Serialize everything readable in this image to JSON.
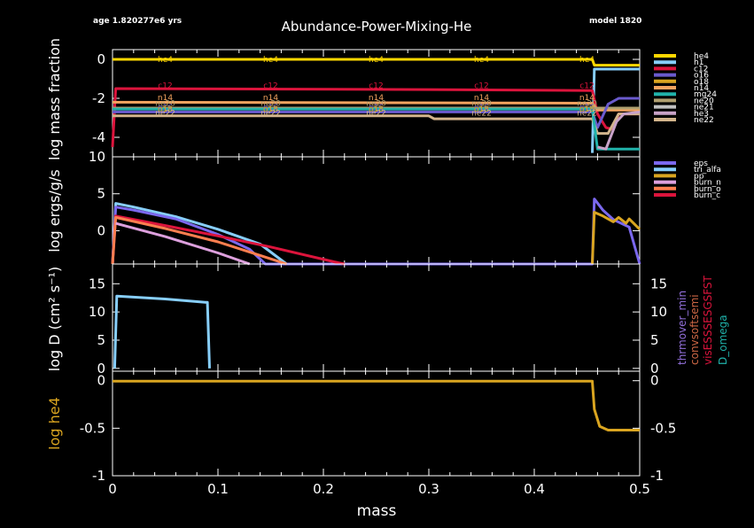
{
  "header": {
    "age": "age 1.820277e6 yrs",
    "title": "Abundance-Power-Mixing-He",
    "model": "model 1820"
  },
  "chart_data": [
    {
      "panel": "abundance",
      "type": "line",
      "ylabel": "log mass fraction",
      "xlim": [
        0,
        0.5
      ],
      "ylim": [
        -5,
        0.5
      ],
      "yticks": [
        "0",
        "-2",
        "-4"
      ],
      "legend": [
        "he4",
        "h1",
        "c12",
        "o16",
        "o18",
        "n14",
        "mg24",
        "ne20",
        "ne21",
        "he3",
        "ne22"
      ],
      "colors": [
        "#FFD700",
        "#87CEFA",
        "#DC143C",
        "#6A5ACD",
        "#DAA520",
        "#F4A460",
        "#20B2AA",
        "#B0A070",
        "#C0C0C0",
        "#C8A2C8",
        "#D2B48C"
      ],
      "inline_labels": [
        "he4",
        "c12",
        "n14",
        "ne20",
        "o16",
        "o18",
        "ne22"
      ],
      "series": [
        {
          "name": "he4",
          "x": [
            0,
            0.455,
            0.457,
            0.5
          ],
          "y": [
            0,
            0,
            -0.3,
            -0.3
          ]
        },
        {
          "name": "h1",
          "x": [
            0.455,
            0.457,
            0.5
          ],
          "y": [
            -4.8,
            -0.5,
            -0.5
          ]
        },
        {
          "name": "c12",
          "x": [
            0,
            0.003,
            0.3,
            0.455,
            0.46,
            0.468,
            0.475,
            0.48,
            0.5
          ],
          "y": [
            -4.5,
            -1.5,
            -1.55,
            -1.6,
            -2.8,
            -3.5,
            -3.6,
            -2.8,
            -2.8
          ]
        },
        {
          "name": "n14",
          "x": [
            0,
            0.455,
            0.46,
            0.5
          ],
          "y": [
            -2.2,
            -2.25,
            -2.6,
            -2.6
          ]
        },
        {
          "name": "ne20",
          "x": [
            0,
            0.455,
            0.5
          ],
          "y": [
            -2.5,
            -2.5,
            -2.5
          ]
        },
        {
          "name": "o16",
          "x": [
            0,
            0.455,
            0.46,
            0.47,
            0.48,
            0.5
          ],
          "y": [
            -2.7,
            -2.7,
            -3.5,
            -2.3,
            -2.0,
            -2.0
          ]
        },
        {
          "name": "ne22",
          "x": [
            0,
            0.3,
            0.305,
            0.455,
            0.46,
            0.47,
            0.48,
            0.5
          ],
          "y": [
            -2.9,
            -2.9,
            -3.05,
            -3.05,
            -3.8,
            -3.8,
            -2.8,
            -2.8
          ]
        },
        {
          "name": "mg24",
          "x": [
            0,
            0.455,
            0.46,
            0.5
          ],
          "y": [
            -2.55,
            -2.55,
            -4.6,
            -4.6
          ]
        },
        {
          "name": "he3",
          "x": [
            0.46,
            0.468,
            0.478,
            0.485,
            0.5
          ],
          "y": [
            -4.5,
            -4.6,
            -3.2,
            -2.8,
            -2.7
          ]
        }
      ]
    },
    {
      "panel": "power",
      "type": "line",
      "ylabel": "log ergs/g/s",
      "xlim": [
        0,
        0.5
      ],
      "ylim": [
        -4.5,
        10
      ],
      "yticks": [
        "10",
        "5",
        "0"
      ],
      "legend": [
        "eps_nuc",
        "tri_alfa",
        "pp",
        "burn_n",
        "burn_o",
        "burn_c"
      ],
      "legend_display": [
        "eps",
        "tri_alfa",
        "pp",
        "burn_n",
        "burn_o",
        "burn_c"
      ],
      "colors": [
        "#7B68EE",
        "#87CEFA",
        "#DAA520",
        "#DDA0DD",
        "#FF7F50",
        "#DC143C"
      ],
      "series": [
        {
          "name": "tri_alfa",
          "x": [
            0,
            0.003,
            0.02,
            0.06,
            0.1,
            0.14,
            0.165
          ],
          "y": [
            -4.5,
            3.7,
            3.2,
            1.9,
            0.2,
            -1.8,
            -4.5
          ]
        },
        {
          "name": "eps",
          "x": [
            0,
            0.003,
            0.02,
            0.06,
            0.1,
            0.13,
            0.145,
            0.455,
            0.457,
            0.465,
            0.475,
            0.49,
            0.5
          ],
          "y": [
            -4.5,
            3.2,
            2.8,
            1.6,
            -0.5,
            -2.5,
            -4.5,
            -4.5,
            4.3,
            2.8,
            1.5,
            0.5,
            -4.5
          ]
        },
        {
          "name": "burn_c",
          "x": [
            0,
            0.003,
            0.05,
            0.1,
            0.15,
            0.21,
            0.22
          ],
          "y": [
            -4.5,
            2.0,
            0.7,
            -0.7,
            -2.2,
            -4.2,
            -4.5
          ]
        },
        {
          "name": "burn_o",
          "x": [
            0,
            0.003,
            0.05,
            0.1,
            0.15,
            0.165
          ],
          "y": [
            -4.5,
            1.8,
            0.3,
            -1.5,
            -3.8,
            -4.5
          ]
        },
        {
          "name": "burn_n",
          "x": [
            0.003,
            0.05,
            0.1,
            0.13
          ],
          "y": [
            1.0,
            -0.8,
            -3.0,
            -4.5
          ]
        },
        {
          "name": "pp",
          "x": [
            0.455,
            0.457,
            0.465,
            0.475,
            0.48,
            0.487,
            0.49,
            0.5
          ],
          "y": [
            -4.5,
            2.5,
            2.0,
            1.2,
            1.8,
            1.0,
            1.6,
            0.2
          ]
        }
      ]
    },
    {
      "panel": "mixing",
      "type": "line",
      "ylabel": "log D (cm² s⁻¹)",
      "xlim": [
        0,
        0.5
      ],
      "ylim": [
        -0.5,
        18.5
      ],
      "yticks": [
        "15",
        "10",
        "5",
        "0"
      ],
      "legend": [
        "thrmover_min",
        "convsoftsemi",
        "visESSSESGSFST",
        "D_omega"
      ],
      "colors": [
        "#9370DB",
        "#CC6644",
        "#DC143C",
        "#20B2AA"
      ],
      "series": [
        {
          "name": "conv",
          "x": [
            0.002,
            0.004,
            0.05,
            0.088,
            0.09,
            0.092
          ],
          "y": [
            0,
            12.8,
            12.3,
            11.7,
            11.7,
            0
          ]
        }
      ]
    },
    {
      "panel": "he4",
      "type": "line",
      "ylabel": "log he4",
      "xlabel": "mass",
      "xlim": [
        0,
        0.5
      ],
      "ylim": [
        -1,
        0.1
      ],
      "xticks": [
        "0",
        "0.1",
        "0.2",
        "0.3",
        "0.4",
        "0.5"
      ],
      "yticks": [
        "0",
        "-0.5",
        "-1"
      ],
      "color": "#DAA520",
      "series": [
        {
          "name": "he4",
          "x": [
            0,
            0.455,
            0.457,
            0.462,
            0.47,
            0.5
          ],
          "y": [
            -0.005,
            -0.005,
            -0.3,
            -0.48,
            -0.52,
            -0.52
          ]
        }
      ]
    }
  ]
}
